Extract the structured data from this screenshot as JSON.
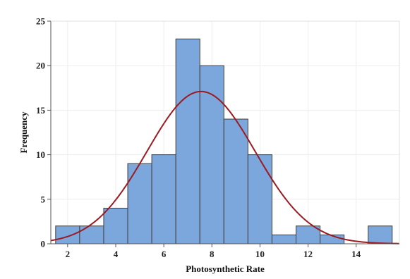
{
  "chart_data": {
    "type": "bar",
    "subtype": "histogram",
    "xlabel": "Photosynthetic Rate",
    "ylabel": "Frequency",
    "xlim": [
      1.3,
      15.8
    ],
    "ylim": [
      0,
      25
    ],
    "bin_width": 1,
    "bins": [
      {
        "center": 2,
        "count": 2
      },
      {
        "center": 3,
        "count": 2
      },
      {
        "center": 4,
        "count": 4
      },
      {
        "center": 5,
        "count": 9
      },
      {
        "center": 6,
        "count": 10
      },
      {
        "center": 7,
        "count": 23
      },
      {
        "center": 8,
        "count": 20
      },
      {
        "center": 9,
        "count": 14
      },
      {
        "center": 10,
        "count": 10
      },
      {
        "center": 11,
        "count": 1
      },
      {
        "center": 12,
        "count": 2
      },
      {
        "center": 13,
        "count": 1
      },
      {
        "center": 15,
        "count": 2
      }
    ],
    "x_ticks": [
      "2",
      "4",
      "6",
      "8",
      "10",
      "12",
      "14"
    ],
    "x_tick_values": [
      2,
      4,
      6,
      8,
      10,
      12,
      14
    ],
    "y_ticks": [
      "0",
      "5",
      "10",
      "15",
      "20",
      "25"
    ],
    "y_tick_values": [
      0,
      5,
      10,
      15,
      20,
      25
    ],
    "fit_curve": {
      "type": "normal",
      "peak_x": 7.55,
      "peak_y": 17.1,
      "sd": 2.25
    },
    "grid": true,
    "legend": "none",
    "colors": {
      "bar_fill": "#7ba7dc",
      "bar_edge": "#3f3f3f",
      "curve": "#9b1b22",
      "grid": "#eeeeee"
    }
  }
}
